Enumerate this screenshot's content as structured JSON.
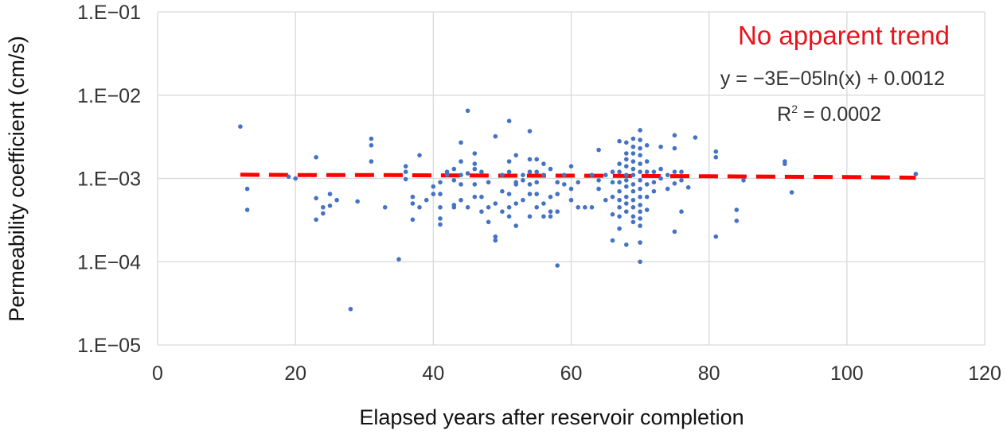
{
  "chart_data": {
    "type": "scatter",
    "xlabel": "Elapsed years after reservoir completion",
    "ylabel": "Permeability coefficient (cm/s)",
    "x_ticks": [
      "0",
      "20",
      "40",
      "60",
      "80",
      "100",
      "120"
    ],
    "y_ticks": [
      "1.E−05",
      "1.E−04",
      "1.E−03",
      "1.E−02",
      "1.E−01"
    ],
    "xlim": [
      0,
      120
    ],
    "ylim": [
      1e-05,
      0.1
    ],
    "y_scale": "log",
    "grid": true,
    "colors": {
      "points": "#4472c4",
      "trendline": "#ff0000",
      "grid": "#d9d9d9",
      "annotation": "#e8141b"
    },
    "annotations": {
      "trend_label": "No apparent trend",
      "equation": "y = −3E−05ln(x) + 0.0012",
      "r_squared_label": "R",
      "r_squared_sup": "2",
      "r_squared_value": " = 0.0002"
    },
    "trendline": {
      "type": "logarithmic",
      "style": "dashed",
      "x": [
        12,
        20,
        30,
        40,
        50,
        60,
        70,
        80,
        90,
        100,
        110
      ],
      "y": [
        0.00111,
        0.0011,
        0.0011,
        0.00109,
        0.00108,
        0.00108,
        0.00107,
        0.00106,
        0.00105,
        0.00104,
        0.00102
      ]
    },
    "series": [
      {
        "points": [
          [
            12,
            0.0042
          ],
          [
            13,
            0.00075
          ],
          [
            13,
            0.00042
          ],
          [
            19,
            0.00105
          ],
          [
            20,
            0.001
          ],
          [
            23,
            0.0018
          ],
          [
            23,
            0.00058
          ],
          [
            23,
            0.00032
          ],
          [
            24,
            0.00038
          ],
          [
            24,
            0.00045
          ],
          [
            25,
            0.00047
          ],
          [
            25,
            0.00065
          ],
          [
            26,
            0.00055
          ],
          [
            28,
            2.7e-05
          ],
          [
            29,
            0.00053
          ],
          [
            31,
            0.003
          ],
          [
            31,
            0.0025
          ],
          [
            31,
            0.0016
          ],
          [
            33,
            0.00045
          ],
          [
            35,
            0.000107
          ],
          [
            36,
            0.0014
          ],
          [
            36,
            0.0012
          ],
          [
            36,
            0.00098
          ],
          [
            37,
            0.0006
          ],
          [
            37,
            0.0005
          ],
          [
            37,
            0.00032
          ],
          [
            38,
            0.0019
          ],
          [
            38,
            0.00045
          ],
          [
            39,
            0.00055
          ],
          [
            40,
            0.0008
          ],
          [
            40,
            0.00065
          ],
          [
            41,
            0.0009
          ],
          [
            41,
            0.00065
          ],
          [
            41,
            0.00045
          ],
          [
            41,
            0.00033
          ],
          [
            41,
            0.00028
          ],
          [
            42,
            0.0012
          ],
          [
            42,
            0.0011
          ],
          [
            43,
            0.0013
          ],
          [
            43,
            0.00095
          ],
          [
            43,
            0.00048
          ],
          [
            43,
            0.00045
          ],
          [
            44,
            0.0027
          ],
          [
            44,
            0.0016
          ],
          [
            44,
            0.0011
          ],
          [
            44,
            0.00085
          ],
          [
            44,
            0.00055
          ],
          [
            45,
            0.0065
          ],
          [
            45,
            0.00115
          ],
          [
            45,
            0.00045
          ],
          [
            46,
            0.002
          ],
          [
            46,
            0.0015
          ],
          [
            46,
            0.0013
          ],
          [
            46,
            0.00085
          ],
          [
            46,
            0.0006
          ],
          [
            47,
            0.0012
          ],
          [
            47,
            0.0006
          ],
          [
            47,
            0.0004
          ],
          [
            48,
            0.0009
          ],
          [
            48,
            0.00045
          ],
          [
            48,
            0.0003
          ],
          [
            49,
            0.0032
          ],
          [
            49,
            0.0005
          ],
          [
            49,
            0.0002
          ],
          [
            49,
            0.00018
          ],
          [
            50,
            0.0011
          ],
          [
            50,
            0.0007
          ],
          [
            50,
            0.0004
          ],
          [
            51,
            0.0049
          ],
          [
            51,
            0.0016
          ],
          [
            51,
            0.0012
          ],
          [
            51,
            0.00065
          ],
          [
            51,
            0.00045
          ],
          [
            51,
            0.00035
          ],
          [
            52,
            0.0019
          ],
          [
            52,
            0.0009
          ],
          [
            52,
            0.00085
          ],
          [
            52,
            0.0005
          ],
          [
            52,
            0.00027
          ],
          [
            53,
            0.0011
          ],
          [
            53,
            0.00095
          ],
          [
            53,
            0.00055
          ],
          [
            54,
            0.0037
          ],
          [
            54,
            0.0017
          ],
          [
            54,
            0.0012
          ],
          [
            54,
            0.00085
          ],
          [
            54,
            0.00065
          ],
          [
            54,
            0.00035
          ],
          [
            55,
            0.0017
          ],
          [
            55,
            0.0012
          ],
          [
            55,
            0.0009
          ],
          [
            55,
            0.00065
          ],
          [
            55,
            0.00045
          ],
          [
            56,
            0.0015
          ],
          [
            56,
            0.0011
          ],
          [
            56,
            0.0005
          ],
          [
            56,
            0.00035
          ],
          [
            57,
            0.0013
          ],
          [
            57,
            0.0006
          ],
          [
            57,
            0.0004
          ],
          [
            57,
            0.00035
          ],
          [
            58,
            0.0009
          ],
          [
            58,
            0.00065
          ],
          [
            58,
            0.0004
          ],
          [
            58,
            9e-05
          ],
          [
            59,
            0.0011
          ],
          [
            59,
            0.00085
          ],
          [
            60,
            0.0014
          ],
          [
            60,
            0.00075
          ],
          [
            60,
            0.00055
          ],
          [
            61,
            0.0009
          ],
          [
            61,
            0.00045
          ],
          [
            62,
            0.00045
          ],
          [
            63,
            0.0011
          ],
          [
            63,
            0.00045
          ],
          [
            64,
            0.00095
          ],
          [
            64,
            0.00075
          ],
          [
            64,
            0.0022
          ],
          [
            65,
            0.00055
          ],
          [
            65,
            0.0011
          ],
          [
            66,
            0.0012
          ],
          [
            66,
            0.0009
          ],
          [
            66,
            0.0006
          ],
          [
            66,
            0.00037
          ],
          [
            66,
            0.00018
          ],
          [
            67,
            0.0028
          ],
          [
            67,
            0.0015
          ],
          [
            67,
            0.0012
          ],
          [
            67,
            0.0009
          ],
          [
            67,
            0.0007
          ],
          [
            67,
            0.00055
          ],
          [
            67,
            0.00045
          ],
          [
            67,
            0.00035
          ],
          [
            67,
            0.00025
          ],
          [
            68,
            0.0027
          ],
          [
            68,
            0.002
          ],
          [
            68,
            0.0017
          ],
          [
            68,
            0.0014
          ],
          [
            68,
            0.0011
          ],
          [
            68,
            0.00095
          ],
          [
            68,
            0.0008
          ],
          [
            68,
            0.0006
          ],
          [
            68,
            0.0005
          ],
          [
            68,
            0.0004
          ],
          [
            68,
            0.00016
          ],
          [
            69,
            0.003
          ],
          [
            69,
            0.0024
          ],
          [
            69,
            0.002
          ],
          [
            69,
            0.0016
          ],
          [
            69,
            0.0013
          ],
          [
            69,
            0.0011
          ],
          [
            69,
            0.00085
          ],
          [
            69,
            0.0007
          ],
          [
            69,
            0.00055
          ],
          [
            69,
            0.00045
          ],
          [
            69,
            0.00035
          ],
          [
            69,
            0.0003
          ],
          [
            70,
            0.0038
          ],
          [
            70,
            0.0029
          ],
          [
            70,
            0.0023
          ],
          [
            70,
            0.0019
          ],
          [
            70,
            0.0015
          ],
          [
            70,
            0.0012
          ],
          [
            70,
            0.00095
          ],
          [
            70,
            0.00075
          ],
          [
            70,
            0.0006
          ],
          [
            70,
            0.00048
          ],
          [
            70,
            0.0004
          ],
          [
            70,
            0.00033
          ],
          [
            70,
            0.00027
          ],
          [
            70,
            0.00017
          ],
          [
            70,
            0.0001
          ],
          [
            71,
            0.0025
          ],
          [
            71,
            0.0016
          ],
          [
            71,
            0.0012
          ],
          [
            71,
            0.00085
          ],
          [
            71,
            0.0006
          ],
          [
            71,
            0.00042
          ],
          [
            72,
            0.0012
          ],
          [
            72,
            0.0009
          ],
          [
            72,
            0.0007
          ],
          [
            73,
            0.0024
          ],
          [
            73,
            0.0013
          ],
          [
            73,
            0.001
          ],
          [
            74,
            0.0011
          ],
          [
            74,
            0.00075
          ],
          [
            75,
            0.0033
          ],
          [
            75,
            0.0023
          ],
          [
            75,
            0.0012
          ],
          [
            75,
            0.00087
          ],
          [
            75,
            0.00023
          ],
          [
            76,
            0.0012
          ],
          [
            76,
            0.00095
          ],
          [
            76,
            0.0004
          ],
          [
            77,
            0.00078
          ],
          [
            78,
            0.0031
          ],
          [
            81,
            0.0021
          ],
          [
            81,
            0.0018
          ],
          [
            81,
            0.0002
          ],
          [
            84,
            0.00042
          ],
          [
            84,
            0.00031
          ],
          [
            85,
            0.00095
          ],
          [
            91,
            0.0016
          ],
          [
            91,
            0.0015
          ],
          [
            92,
            0.00068
          ],
          [
            110,
            0.00113
          ]
        ]
      }
    ]
  }
}
